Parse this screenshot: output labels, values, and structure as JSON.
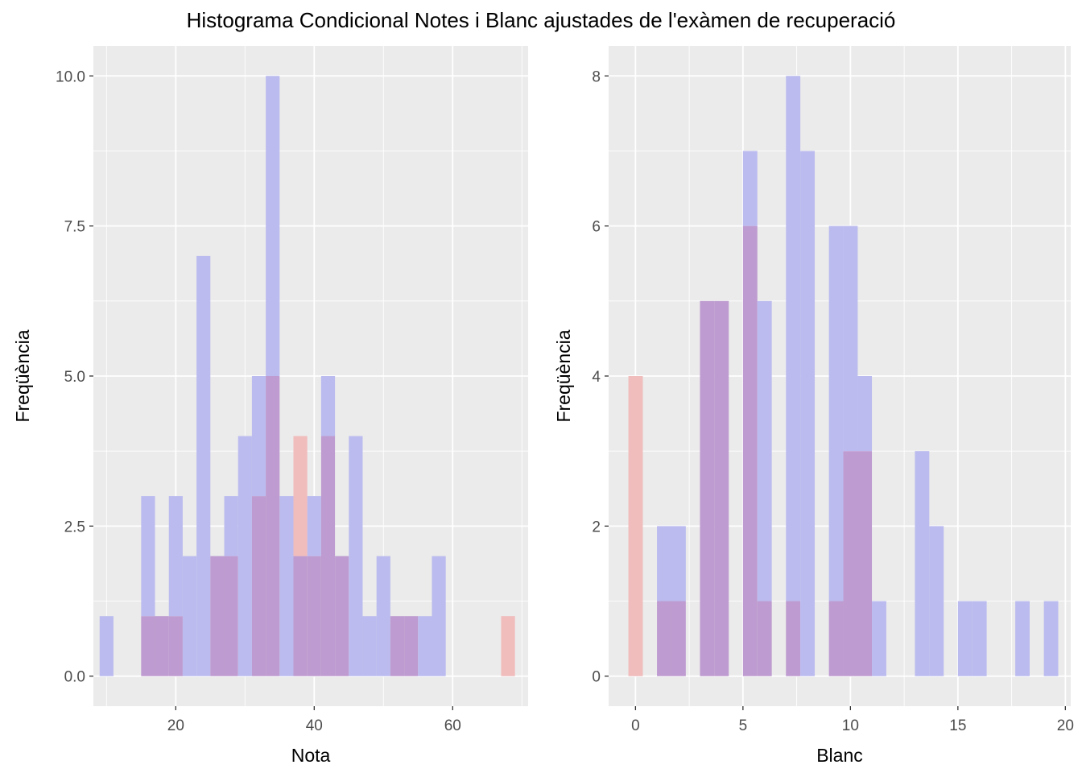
{
  "title": "Histograma Condicional Notes i Blanc ajustades de l'exàmen de recuperació",
  "colors": {
    "panel_bg": "#EBEBEB",
    "grid": "#FFFFFF",
    "blue_fill": "#BBBBEF",
    "red_fill": "#F0BCBC",
    "overlap_fill": "#BE9BD0",
    "tick_text": "#4D4D4D"
  },
  "chart_data": [
    {
      "type": "bar",
      "subtype": "histogram-overlaid",
      "xlabel": "Nota",
      "ylabel": "Freqüència",
      "xlim": [
        8.1,
        70.9
      ],
      "ylim": [
        -0.5,
        10.5
      ],
      "xticks": [
        20,
        40,
        60
      ],
      "xtick_labels": [
        "20",
        "40",
        "60"
      ],
      "yticks": [
        0,
        2.5,
        5,
        7.5,
        10
      ],
      "ytick_labels": [
        "0.0",
        "2.5",
        "5.0",
        "7.5",
        "10.0"
      ],
      "grid": true,
      "bin_starts": [
        9,
        11,
        13,
        15,
        17,
        19,
        21,
        23,
        25,
        27,
        29,
        31,
        33,
        35,
        37,
        39,
        41,
        43,
        45,
        47,
        49,
        51,
        53,
        55,
        57,
        59,
        61,
        63,
        65,
        67
      ],
      "bin_width": 2,
      "series": [
        {
          "color": "blue",
          "values": [
            1,
            0,
            0,
            3,
            1,
            3,
            2,
            7,
            2,
            3,
            4,
            5,
            10,
            3,
            2,
            3,
            5,
            2,
            4,
            1,
            2,
            1,
            1,
            1,
            2,
            0,
            0,
            0,
            0,
            0
          ]
        },
        {
          "color": "red",
          "values": [
            0,
            0,
            0,
            1,
            1,
            1,
            0,
            0,
            2,
            2,
            0,
            3,
            5,
            0,
            4,
            2,
            4,
            2,
            0,
            0,
            0,
            1,
            1,
            0,
            0,
            0,
            0,
            0,
            0,
            1
          ]
        }
      ]
    },
    {
      "type": "bar",
      "subtype": "histogram-overlaid",
      "xlabel": "Blanc",
      "ylabel": "Freqüència",
      "xlim": [
        -1.25,
        20.25
      ],
      "ylim": [
        -0.4,
        8.4
      ],
      "xticks": [
        0,
        5,
        10,
        15,
        20
      ],
      "xtick_labels": [
        "0",
        "5",
        "10",
        "15",
        "20"
      ],
      "yticks": [
        0,
        2,
        4,
        6,
        8
      ],
      "ytick_labels": [
        "0",
        "2",
        "4",
        "6",
        "8"
      ],
      "grid": true,
      "bin_starts": [
        -0.33,
        0.33,
        1,
        1.67,
        2.33,
        3,
        3.67,
        4.33,
        5,
        5.67,
        6.33,
        7,
        7.67,
        8.33,
        9,
        9.67,
        10.33,
        11,
        11.67,
        12.33,
        13,
        13.67,
        14.33,
        15,
        15.67,
        16.33,
        17,
        17.67,
        18.33,
        19
      ],
      "bin_width": 0.67,
      "series": [
        {
          "color": "blue",
          "values": [
            0,
            0,
            2,
            2,
            0,
            5,
            5,
            0,
            7,
            5,
            0,
            8,
            7,
            0,
            6,
            6,
            4,
            1,
            0,
            0,
            3,
            2,
            0,
            1,
            1,
            0,
            0,
            1,
            0,
            1
          ]
        },
        {
          "color": "red",
          "values": [
            4,
            0,
            1,
            1,
            0,
            5,
            5,
            0,
            6,
            1,
            0,
            1,
            0,
            0,
            1,
            3,
            3,
            0,
            0,
            0,
            0,
            0,
            0,
            0,
            0,
            0,
            0,
            0,
            0,
            0
          ]
        }
      ]
    }
  ]
}
